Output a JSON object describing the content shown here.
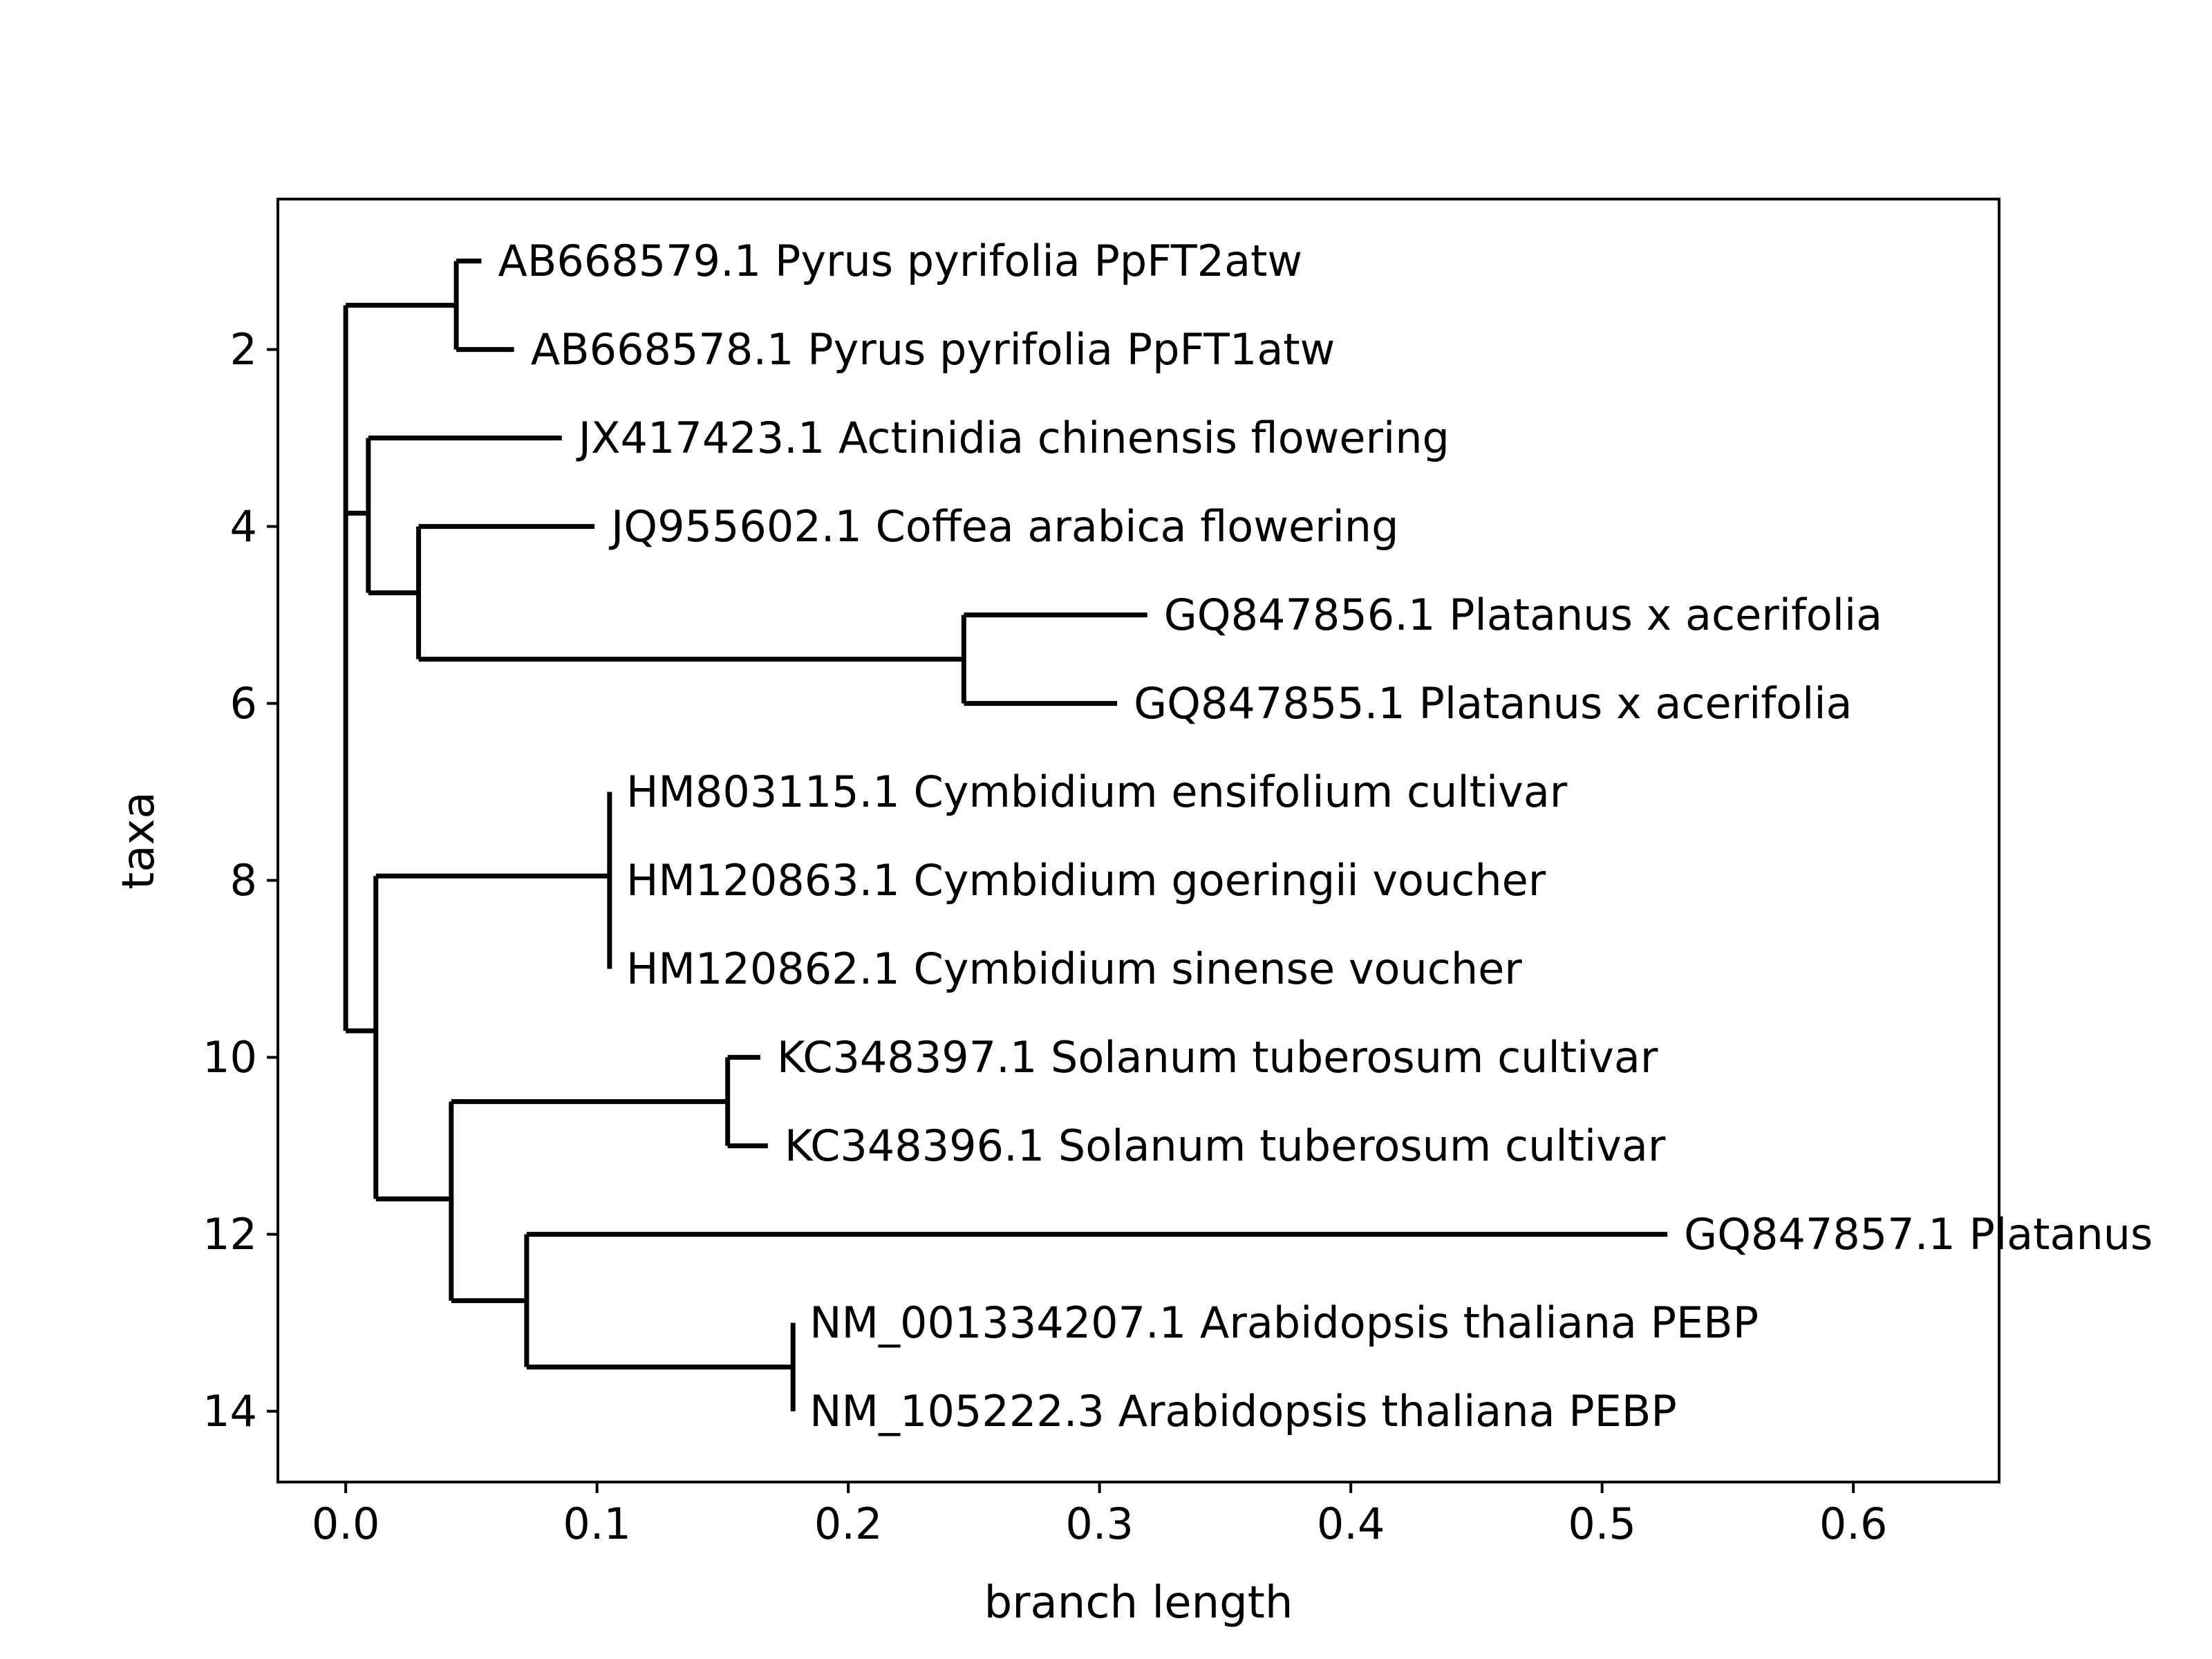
{
  "chart_data": {
    "type": "dendrogram",
    "title": "",
    "xlabel": "branch length",
    "ylabel": "taxa",
    "xlim": [
      -0.027,
      0.658
    ],
    "ylim": [
      14.8,
      0.3
    ],
    "x_ticks": [
      0.0,
      0.1,
      0.2,
      0.3,
      0.4,
      0.5,
      0.6
    ],
    "x_tick_labels": [
      "0.0",
      "0.1",
      "0.2",
      "0.3",
      "0.4",
      "0.5",
      "0.6"
    ],
    "y_ticks": [
      2,
      4,
      6,
      8,
      10,
      12,
      14
    ],
    "y_tick_labels": [
      "2",
      "4",
      "6",
      "8",
      "10",
      "12",
      "14"
    ],
    "grid": false,
    "leaves": [
      {
        "y": 1,
        "x": 0.054,
        "label": "AB668579.1 Pyrus pyrifolia PpFT2atw"
      },
      {
        "y": 2,
        "x": 0.067,
        "label": "AB668578.1 Pyrus pyrifolia PpFT1atw"
      },
      {
        "y": 3,
        "x": 0.086,
        "label": "JX417423.1 Actinidia chinensis flowering"
      },
      {
        "y": 4,
        "x": 0.099,
        "label": "JQ955602.1 Coffea arabica flowering"
      },
      {
        "y": 5,
        "x": 0.319,
        "label": "GQ847856.1 Platanus x acerifolia"
      },
      {
        "y": 6,
        "x": 0.307,
        "label": "GQ847855.1 Platanus x acerifolia"
      },
      {
        "y": 7,
        "x": 0.105,
        "label": "HM803115.1 Cymbidium ensifolium cultivar"
      },
      {
        "y": 8,
        "x": 0.105,
        "label": "HM120863.1 Cymbidium goeringii voucher"
      },
      {
        "y": 9,
        "x": 0.105,
        "label": "HM120862.1 Cymbidium sinense voucher"
      },
      {
        "y": 10,
        "x": 0.165,
        "label": "KC348397.1 Solanum tuberosum cultivar"
      },
      {
        "y": 11,
        "x": 0.168,
        "label": "KC348396.1 Solanum tuberosum cultivar"
      },
      {
        "y": 12,
        "x": 0.526,
        "label": "GQ847857.1 Platanus"
      },
      {
        "y": 13,
        "x": 0.178,
        "label": "NM_001334207.1 Arabidopsis thaliana PEBP"
      },
      {
        "y": 14,
        "x": 0.178,
        "label": "NM_105222.3 Arabidopsis thaliana PEBP"
      }
    ],
    "clades": [
      {
        "id": "root",
        "x": 0.0,
        "y": 9.7,
        "y_min": 1.5,
        "y_max": 9.7,
        "parent": null
      },
      {
        "id": "pyrus",
        "x": 0.044,
        "y": 1.5,
        "y_min": 1,
        "y_max": 2,
        "parent": "root"
      },
      {
        "id": "c1",
        "x": 0.009,
        "y": 3.85,
        "y_min": 3,
        "y_max": 4.75,
        "parent": "root"
      },
      {
        "id": "c2",
        "x": 0.029,
        "y": 4.75,
        "y_min": 4,
        "y_max": 5.5,
        "parent": "c1"
      },
      {
        "id": "platanus",
        "x": 0.246,
        "y": 5.5,
        "y_min": 5,
        "y_max": 6,
        "parent": "c2"
      },
      {
        "id": "c3",
        "x": 0.012,
        "y": 9.7,
        "y_min": 7.95,
        "y_max": 11.6,
        "parent": "root"
      },
      {
        "id": "cymbidium",
        "x": 0.105,
        "y": 7.95,
        "y_min": 7,
        "y_max": 9,
        "parent": "c3"
      },
      {
        "id": "c4",
        "x": 0.042,
        "y": 11.6,
        "y_min": 10.5,
        "y_max": 12.75,
        "parent": "c3"
      },
      {
        "id": "solanum",
        "x": 0.152,
        "y": 10.5,
        "y_min": 10,
        "y_max": 11,
        "parent": "c4"
      },
      {
        "id": "c5",
        "x": 0.072,
        "y": 12.75,
        "y_min": 12,
        "y_max": 13.5,
        "parent": "c4"
      },
      {
        "id": "arabidopsis",
        "x": 0.178,
        "y": 13.5,
        "y_min": 13,
        "y_max": 14,
        "parent": "c5"
      }
    ],
    "edges": [
      {
        "parent": "pyrus",
        "leaf": 1
      },
      {
        "parent": "pyrus",
        "leaf": 2
      },
      {
        "parent": "c1",
        "leaf": 3
      },
      {
        "parent": "c2",
        "leaf": 4
      },
      {
        "parent": "platanus",
        "leaf": 5
      },
      {
        "parent": "platanus",
        "leaf": 6
      },
      {
        "parent": "c5",
        "leaf": 12
      }
    ]
  }
}
